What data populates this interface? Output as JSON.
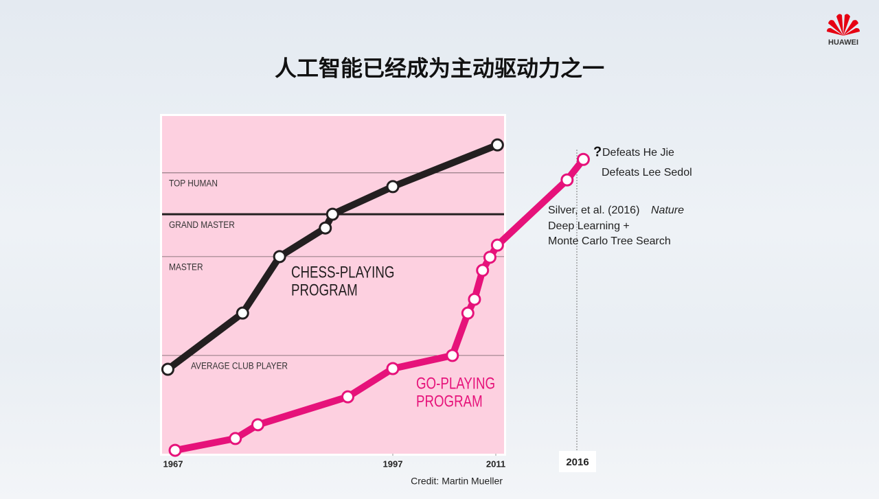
{
  "brand": "HUAWEI",
  "chart_data": {
    "type": "line",
    "title": "人工智能已经成为主动驱动力之一",
    "credit": "Credit: Martin Mueller",
    "xlim": [
      1966,
      2016
    ],
    "xticks": [
      1967,
      1997,
      2011,
      2016
    ],
    "ylim": [
      0,
      100
    ],
    "yticks": [
      {
        "value": 29,
        "label": "AVERAGE CLUB PLAYER"
      },
      {
        "value": 58.4,
        "label": "MASTER"
      },
      {
        "value": 71,
        "label": "GRAND MASTER"
      },
      {
        "value": 83.3,
        "label": "TOP HUMAN"
      }
    ],
    "series": [
      {
        "name": "CHESS-PLAYING PROGRAM",
        "color": "#231f20",
        "x": [
          1966.0,
          1976.3,
          1981.4,
          1987.7,
          1988.7,
          1997.0,
          2011.1
        ],
        "values": [
          24.9,
          41.6,
          58.4,
          66.9,
          71.0,
          79.2,
          91.6
        ]
      },
      {
        "name": "GO-PLAYING PROGRAM",
        "color": "#e6127a",
        "x": [
          1967.0,
          1975.3,
          1978.4,
          1990.8,
          1997.0,
          2005.1,
          2007.2,
          2008.1,
          2009.2,
          2010.2,
          2011.1,
          2015.4,
          2016.4
        ],
        "values": [
          0.8,
          4.3,
          8.4,
          16.7,
          25.1,
          29.0,
          41.6,
          45.7,
          54.3,
          58.2,
          61.8,
          81.2,
          87.3
        ]
      }
    ],
    "annotations": [
      "?",
      "Defeats He Jie",
      "Defeats Lee Sedol",
      "Silver, et al. (2016)",
      "Nature",
      "Deep Learning +",
      "Monte Carlo Tree Search"
    ]
  }
}
